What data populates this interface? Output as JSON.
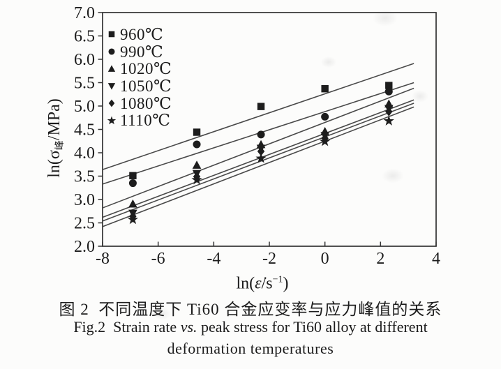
{
  "colors": {
    "background": "#fcfcfb",
    "axis": "#333333",
    "line": "#4a4a4a",
    "marker": "#1d1d1d",
    "text": "#1c1c1c"
  },
  "axes": {
    "x_label_pre": "ln(",
    "x_label_var": "ε̇",
    "x_label_mid": "/s",
    "x_label_sup": "−1",
    "x_label_post": ")",
    "y_label_pre": "ln(σ",
    "y_label_sub": "峰",
    "y_label_post": "/MPa)"
  },
  "caption": {
    "zh": "图 2  不同温度下 Ti60 合金应变率与应力峰值的关系",
    "en_fig": "Fig.2  ",
    "en_pre": "Strain rate ",
    "en_vs": "vs.",
    "en_post": " peak stress for Ti60 alloy at different",
    "en_line2": "deformation temperatures"
  },
  "chart_data": {
    "type": "scatter",
    "title": "",
    "xlabel": "ln(ε̇/s⁻¹)",
    "ylabel": "ln(σ峰/MPa)",
    "xlim": [
      -8,
      4
    ],
    "ylim": [
      2.0,
      7.0
    ],
    "x_ticks": [
      -8,
      -6,
      -4,
      -2,
      0,
      2,
      4
    ],
    "y_ticks": [
      2.0,
      2.5,
      3.0,
      3.5,
      4.0,
      4.5,
      5.0,
      5.5,
      6.0,
      6.5,
      7.0
    ],
    "grid": false,
    "legend_position": "top-left-inside",
    "x": [
      -6.91,
      -4.61,
      -2.3,
      0,
      2.3
    ],
    "series": [
      {
        "label": "960℃",
        "marker": "square",
        "y": [
          3.51,
          4.44,
          4.99,
          5.37,
          5.44
        ],
        "fit": [
          -8,
          3.64,
          3.2,
          5.91
        ]
      },
      {
        "label": "990℃",
        "marker": "circle",
        "y": [
          3.35,
          4.18,
          4.39,
          4.77,
          5.31
        ],
        "fit": [
          -8,
          3.33,
          3.2,
          5.5
        ]
      },
      {
        "label": "1020℃",
        "marker": "triangle-up",
        "y": [
          2.9,
          3.73,
          4.17,
          4.45,
          5.04
        ],
        "fit": [
          -8,
          2.82,
          3.2,
          5.38
        ]
      },
      {
        "label": "1050℃",
        "marker": "triangle-down",
        "y": [
          2.71,
          3.56,
          4.1,
          4.37,
          4.95
        ],
        "fit": [
          -8,
          2.62,
          3.2,
          5.13
        ]
      },
      {
        "label": "1080℃",
        "marker": "diamond",
        "y": [
          2.64,
          3.49,
          4.03,
          4.31,
          4.88
        ],
        "fit": [
          -8,
          2.54,
          3.2,
          5.06
        ]
      },
      {
        "label": "1110℃",
        "marker": "star",
        "y": [
          2.57,
          3.42,
          3.88,
          4.24,
          4.68
        ],
        "fit": [
          -8,
          2.42,
          3.2,
          4.98
        ]
      }
    ]
  }
}
